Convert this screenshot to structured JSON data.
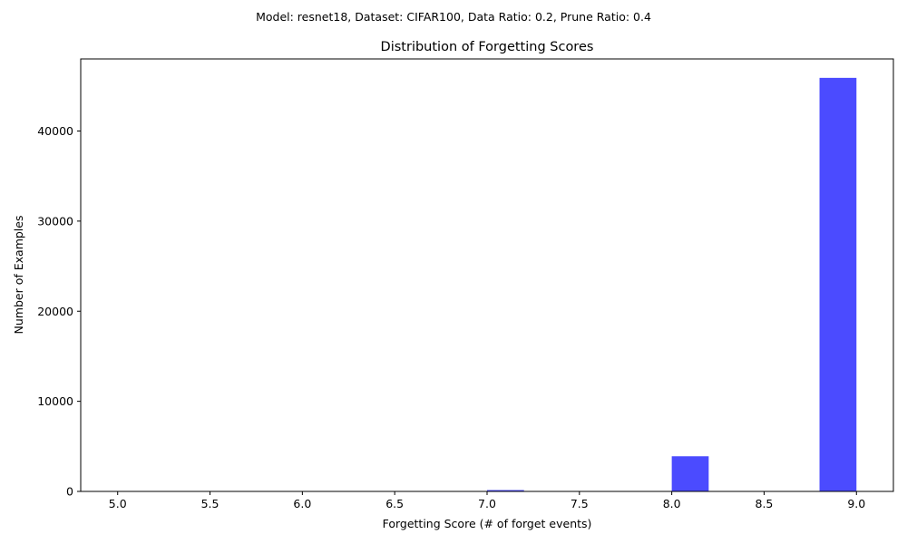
{
  "figure": {
    "suptitle": "Model: resnet18, Dataset: CIFAR100, Data Ratio: 0.2, Prune Ratio: 0.4"
  },
  "chart_data": {
    "type": "bar",
    "title": "Distribution of Forgetting Scores",
    "xlabel": "Forgetting Score (# of forget events)",
    "ylabel": "Number of Examples",
    "xlim": [
      4.8,
      9.2
    ],
    "ylim": [
      0,
      48000
    ],
    "xticks": [
      "5.0",
      "5.5",
      "6.0",
      "6.5",
      "7.0",
      "7.5",
      "8.0",
      "8.5",
      "9.0"
    ],
    "xtick_values": [
      5.0,
      5.5,
      6.0,
      6.5,
      7.0,
      7.5,
      8.0,
      8.5,
      9.0
    ],
    "yticks": [
      "0",
      "10000",
      "20000",
      "30000",
      "40000"
    ],
    "ytick_values": [
      0,
      10000,
      20000,
      30000,
      40000
    ],
    "bars": [
      {
        "x0": 5.0,
        "x1": 5.2,
        "value": 0
      },
      {
        "x0": 7.0,
        "x1": 7.2,
        "value": 150
      },
      {
        "x0": 8.0,
        "x1": 8.2,
        "value": 3900
      },
      {
        "x0": 8.8,
        "x1": 9.0,
        "value": 45900
      }
    ],
    "bar_color": "#4b4bff",
    "grid": false,
    "legend": "none"
  }
}
